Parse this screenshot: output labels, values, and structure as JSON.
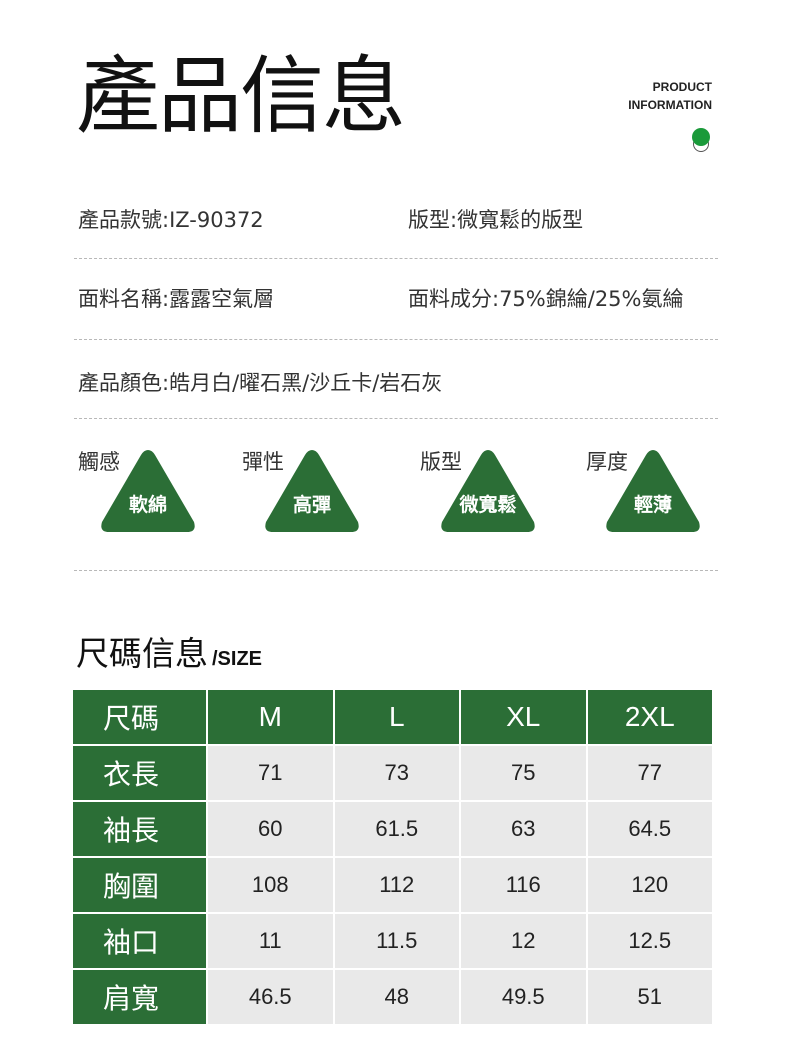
{
  "header": {
    "title": "產品信息",
    "en_line1": "PRODUCT",
    "en_line2": "INFORMATION"
  },
  "info": {
    "style_no": "產品款號:IZ-90372",
    "fit": "版型:微寬鬆的版型",
    "fabric_name": "面料名稱:露露空氣層",
    "composition": "面料成分:75%錦綸/25%氨綸",
    "colors": "產品顏色:皓月白/曜石黑/沙丘卡/岩石灰"
  },
  "features": [
    {
      "label": "觸感",
      "value": "軟綿"
    },
    {
      "label": "彈性",
      "value": "高彈"
    },
    {
      "label": "版型",
      "value": "微寬鬆"
    },
    {
      "label": "厚度",
      "value": "輕薄"
    }
  ],
  "size_section": {
    "title": "尺碼信息",
    "title_en": "/SIZE",
    "header": [
      "尺碼",
      "M",
      "L",
      "XL",
      "2XL"
    ],
    "rows": [
      {
        "name": "衣長",
        "values": [
          "71",
          "73",
          "75",
          "77"
        ]
      },
      {
        "name": "袖長",
        "values": [
          "60",
          "61.5",
          "63",
          "64.5"
        ]
      },
      {
        "name": "胸圍",
        "values": [
          "108",
          "112",
          "116",
          "120"
        ]
      },
      {
        "name": "袖口",
        "values": [
          "11",
          "11.5",
          "12",
          "12.5"
        ]
      },
      {
        "name": "肩寬",
        "values": [
          "46.5",
          "48",
          "49.5",
          "51"
        ]
      }
    ]
  },
  "colors": {
    "accent_green": "#2b6e36",
    "dot_green": "#1a9a3a",
    "cell_gray": "#e9e9e9"
  }
}
